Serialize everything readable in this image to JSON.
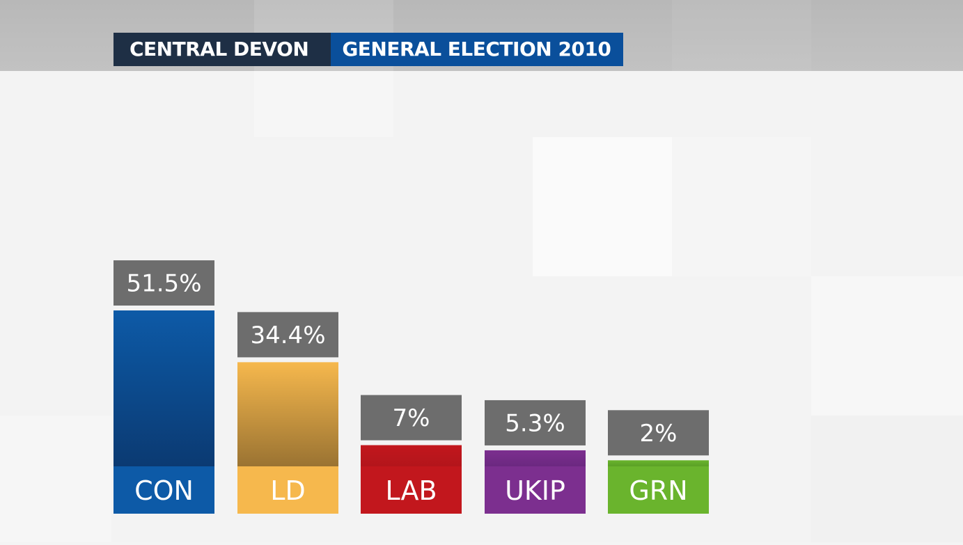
{
  "header": {
    "constituency": "CENTRAL DEVON",
    "election": "GENERAL ELECTION 2010"
  },
  "colors": {
    "header_left_bg": "#1e2f45",
    "header_right_bg": "#0a4f9b",
    "value_box": "#6d6d6d",
    "page_bg": "#f4f4f4"
  },
  "chart_data": {
    "type": "bar",
    "categories": [
      "CON",
      "LD",
      "LAB",
      "UKIP",
      "GRN"
    ],
    "values": [
      51.5,
      34.4,
      7,
      5.3,
      2
    ],
    "value_labels": [
      "51.5%",
      "34.4%",
      "7%",
      "5.3%",
      "2%"
    ],
    "colors": [
      "#0d5aa7",
      "#f6b84d",
      "#c2171d",
      "#7c2f8f",
      "#6ab42d"
    ],
    "colors_dark": [
      "#0b3a72",
      "#9a7332",
      "#b3151b",
      "#6b2880",
      "#5aa026"
    ],
    "title": "",
    "xlabel": "",
    "ylabel": "",
    "ylim": [
      0,
      51.5
    ],
    "grid": false,
    "legend": "none"
  }
}
